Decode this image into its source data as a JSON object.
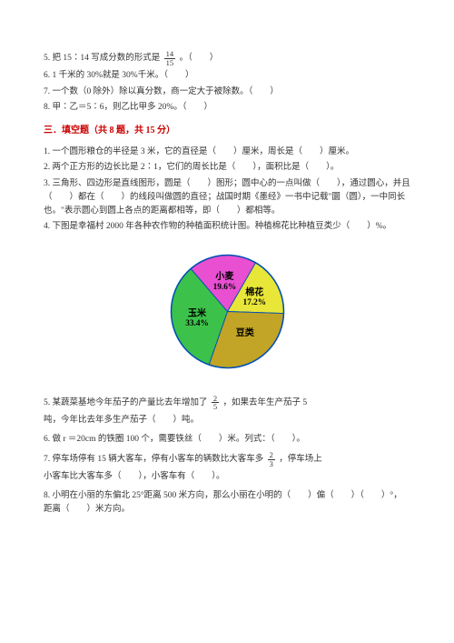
{
  "top": {
    "q5a": "5. 把 15∶14 写成分数的形式是",
    "q5_frac_n": "14",
    "q5_frac_d": "15",
    "q5b": "。（　　）",
    "q6": "6. 1 千米的 30%就是 30%千米。（　　）",
    "q7": "7. 一个数（0 除外）除以真分数，商一定大于被除数。（　　）",
    "q8": "8. 甲∶乙＝5∶6，则乙比甲多 20%。（　　）"
  },
  "section3_title": "三．填空题（共 8 题，共 15 分）",
  "fill": {
    "q1": "1. 一个圆形粮仓的半径是 3 米，它的直径是（　　）厘米，周长是（　　）厘米。",
    "q2": "2. 两个正方形的边长比是 2∶1，它们的周长比是（　　），面积比是（　　）。",
    "q3": "3. 三角形、四边形是直线图形，圆是（　　）图形；圆中心的一点叫做（　　），通过圆心，并且（　　）都在（　　）的线段叫做圆的直径；战国时期《墨经》一书中记载\"圜（圆），一中同长也。\"表示圆心到圆上各点的距离都相等，即（　　）都相等。",
    "q4": "4. 下图是幸福村 2000 年各种农作物的种植面积统计图。种植棉花比种植豆类少（　　）%。"
  },
  "chart": {
    "slices": [
      {
        "label": "棉花 17.2%",
        "color": "#e8e638",
        "value": 17.2
      },
      {
        "label": "豆类",
        "color": "#c2a526",
        "value": 29.8
      },
      {
        "label": "玉米 33.4%",
        "color": "#3cc24a",
        "value": 33.4
      },
      {
        "label": "小麦 19.6%",
        "color": "#e84fd1",
        "value": 19.6
      }
    ],
    "title_color": "#000"
  },
  "fill2": {
    "q5a": "5. 某蔬菜基地今年茄子的产量比去年增加了",
    "q5_frac_n": "2",
    "q5_frac_d": "5",
    "q5b": "，如果去年生产茄子 5",
    "q5c": "吨，今年比去年多生产茄子（　　）吨。",
    "q6": "6. 做 r ＝20cm 的铁圈 100 个，需要铁丝（　　）米。列式：（　　）。",
    "q7a": "7. 停车场停有 15 辆大客车，停有小客车的辆数比大客车多",
    "q7_frac_n": "2",
    "q7_frac_d": "3",
    "q7b": "，停车场上",
    "q7c": "小客车比大客车多（　　），小客车有（　　）。",
    "q8": "8. 小明在小丽的东偏北 25°距离 500 米方向，那么小丽在小明的（　　）偏（　　）（　　）°，距离（　　）米方向。"
  }
}
